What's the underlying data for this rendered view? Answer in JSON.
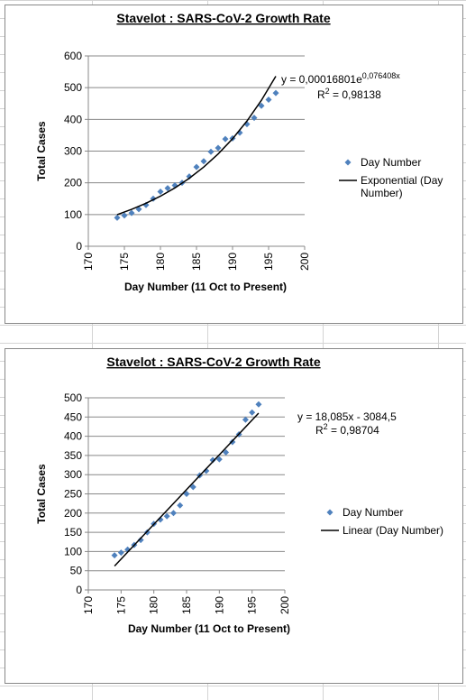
{
  "chart_data": [
    {
      "type": "scatter",
      "title": "Stavelot : SARS-CoV-2 Growth Rate",
      "x_label": "Day Number (11 Oct to Present)",
      "y_label": "Total Cases",
      "xlim": [
        170,
        200
      ],
      "xticks": [
        170,
        175,
        180,
        185,
        190,
        195,
        200
      ],
      "ylim": [
        0,
        600
      ],
      "yticks": [
        0,
        100,
        200,
        300,
        400,
        500,
        600
      ],
      "grid": true,
      "equation": "y = 0,00016801e",
      "equation_exponent": "0,076408x",
      "r2_symbol": "R",
      "r2_power": "2",
      "r2_value": " = 0,98138",
      "series": [
        {
          "name": "Day Number",
          "color": "#4f81bd",
          "mode": "markers",
          "x": [
            174,
            175,
            176,
            177,
            178,
            179,
            180,
            181,
            182,
            183,
            184,
            185,
            186,
            187,
            188,
            189,
            190,
            191,
            192,
            193,
            194,
            195,
            196
          ],
          "values": [
            90,
            97,
            105,
            117,
            130,
            150,
            172,
            183,
            192,
            200,
            220,
            250,
            268,
            298,
            310,
            338,
            340,
            358,
            385,
            405,
            443,
            462,
            483
          ]
        },
        {
          "name": "Exponential (Day Number)",
          "color": "#000000",
          "mode": "line",
          "x": [
            174,
            176,
            178,
            180,
            182,
            184,
            186,
            188,
            190,
            192,
            194,
            196
          ],
          "values": [
            99.8,
            116.3,
            135.5,
            157.9,
            183.9,
            214.3,
            249.7,
            290.9,
            338.9,
            394.9,
            460.1,
            536.0
          ]
        }
      ]
    },
    {
      "type": "scatter",
      "title": "Stavelot : SARS-CoV-2 Growth Rate",
      "x_label": "Day Number (11 Oct to Present)",
      "y_label": "Total Cases",
      "xlim": [
        170,
        200
      ],
      "xticks": [
        170,
        175,
        180,
        185,
        190,
        195,
        200
      ],
      "ylim": [
        0,
        500
      ],
      "yticks": [
        0,
        50,
        100,
        150,
        200,
        250,
        300,
        350,
        400,
        450,
        500
      ],
      "grid": true,
      "equation": "y = 18,085x - 3084,5",
      "r2_symbol": "R",
      "r2_power": "2",
      "r2_value": " = 0,98704",
      "series": [
        {
          "name": "Day Number",
          "color": "#4f81bd",
          "mode": "markers",
          "x": [
            174,
            175,
            176,
            177,
            178,
            179,
            180,
            181,
            182,
            183,
            184,
            185,
            186,
            187,
            188,
            189,
            190,
            191,
            192,
            193,
            194,
            195,
            196
          ],
          "values": [
            90,
            97,
            105,
            117,
            130,
            150,
            172,
            183,
            192,
            200,
            220,
            250,
            268,
            298,
            310,
            338,
            340,
            358,
            385,
            405,
            443,
            462,
            483
          ]
        },
        {
          "name": "Linear (Day Number)",
          "color": "#000000",
          "mode": "line",
          "x": [
            174,
            196
          ],
          "values": [
            62.3,
            460.2
          ]
        }
      ]
    }
  ]
}
